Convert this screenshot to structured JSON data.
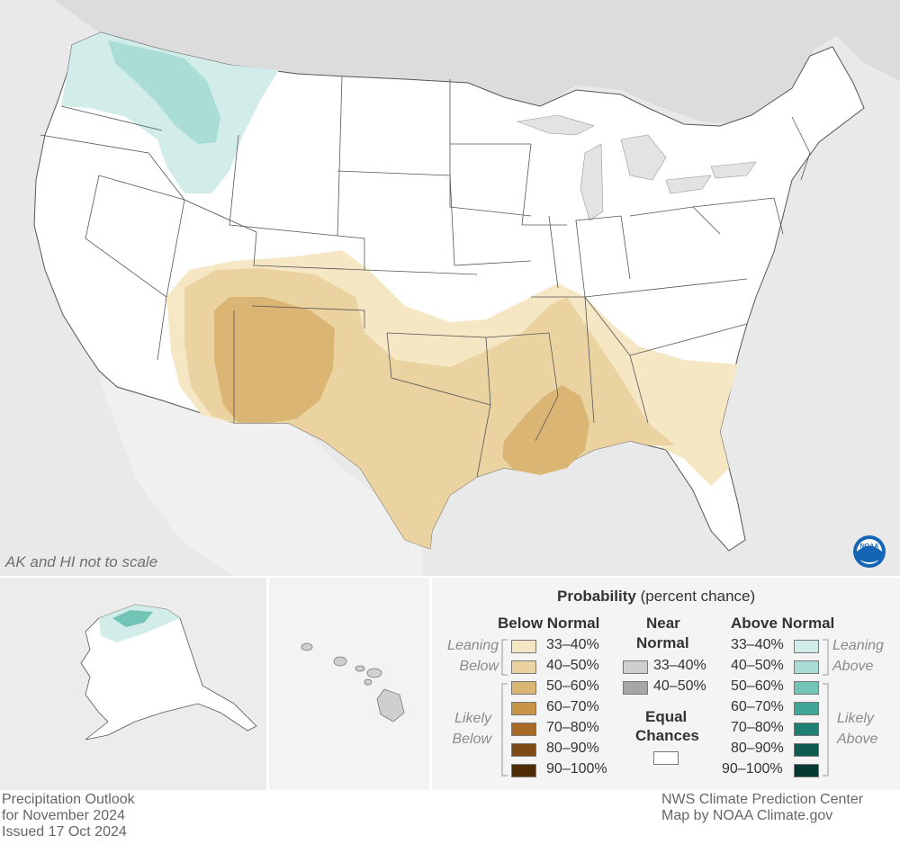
{
  "map": {
    "note": "AK and HI not to scale"
  },
  "legend": {
    "title_bold": "Probability",
    "title_rest": " (percent chance)",
    "below_normal": {
      "header": "Below Normal",
      "leaning_label": "Leaning Below",
      "likely_label": "Likely Below",
      "items": [
        {
          "label": "33–40%",
          "color": "#f5e6c4"
        },
        {
          "label": "40–50%",
          "color": "#ead3a0"
        },
        {
          "label": "50–60%",
          "color": "#dbb574"
        },
        {
          "label": "60–70%",
          "color": "#c79347"
        },
        {
          "label": "70–80%",
          "color": "#a86a25"
        },
        {
          "label": "80–90%",
          "color": "#7e4a13"
        },
        {
          "label": "90–100%",
          "color": "#4f2c07"
        }
      ]
    },
    "near_normal": {
      "header_line1": "Near",
      "header_line2": "Normal",
      "items": [
        {
          "label": "33–40%",
          "color": "#cfcfcf"
        },
        {
          "label": "40–50%",
          "color": "#a6a6a6"
        }
      ]
    },
    "equal_chances": {
      "line1": "Equal",
      "line2": "Chances",
      "color": "#ffffff"
    },
    "above_normal": {
      "header": "Above Normal",
      "leaning_label": "Leaning Above",
      "likely_label": "Likely Above",
      "items": [
        {
          "label": "33–40%",
          "color": "#d2ede9"
        },
        {
          "label": "40–50%",
          "color": "#a9ddd5"
        },
        {
          "label": "50–60%",
          "color": "#72c4b7"
        },
        {
          "label": "60–70%",
          "color": "#3fa597"
        },
        {
          "label": "70–80%",
          "color": "#1e8073"
        },
        {
          "label": "80–90%",
          "color": "#0d5c52"
        },
        {
          "label": "90–100%",
          "color": "#053a34"
        }
      ]
    }
  },
  "footer": {
    "left_line1": "Precipitation Outlook",
    "left_line2": "for November 2024",
    "left_line3": "Issued 17 Oct 2024",
    "right_line1": "NWS Climate Prediction Center",
    "right_line2": "Map by NOAA Climate.gov"
  },
  "logo": {
    "text": "NOAA",
    "color": "#1466b5"
  }
}
